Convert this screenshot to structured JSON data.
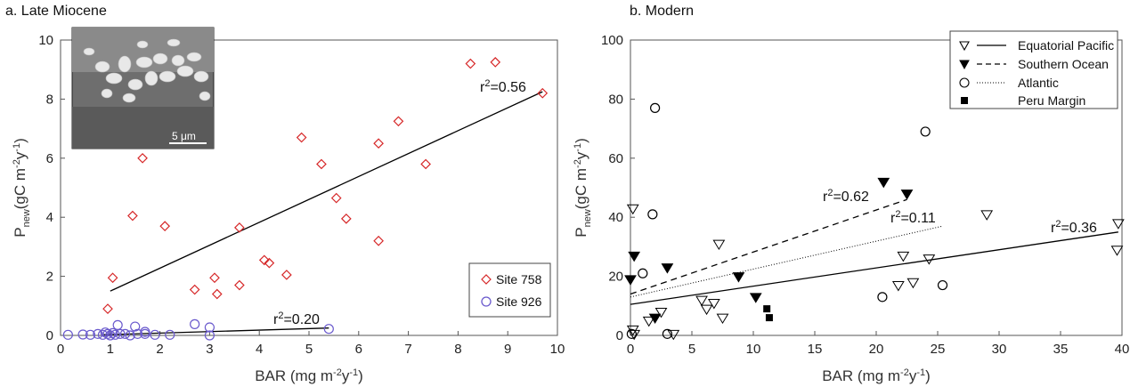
{
  "chart_data": [
    {
      "panel_title": "a. Late Miocene",
      "type": "scatter",
      "xlabel": "BAR (mg m-2y-1)",
      "ylabel": "Pnew (gC m-2y-1)",
      "xlim": [
        0,
        10
      ],
      "ylim": [
        0,
        10
      ],
      "xticks": [
        0,
        1,
        2,
        3,
        4,
        5,
        6,
        7,
        8,
        9,
        10
      ],
      "yticks": [
        0,
        2,
        4,
        6,
        8,
        10
      ],
      "legend_position": "bottom-right",
      "inset_image": {
        "description_label": "5 μm"
      },
      "series": [
        {
          "name": "Site 758",
          "marker": "diamond-open",
          "color": "#d62728",
          "points": [
            [
              0.95,
              0.9
            ],
            [
              1.05,
              1.95
            ],
            [
              1.45,
              4.05
            ],
            [
              1.65,
              6.0
            ],
            [
              2.1,
              3.7
            ],
            [
              2.7,
              1.55
            ],
            [
              3.1,
              1.95
            ],
            [
              3.15,
              1.4
            ],
            [
              3.6,
              3.65
            ],
            [
              3.6,
              1.7
            ],
            [
              4.1,
              2.55
            ],
            [
              4.2,
              2.45
            ],
            [
              4.55,
              2.05
            ],
            [
              4.85,
              6.7
            ],
            [
              5.25,
              5.8
            ],
            [
              5.55,
              4.65
            ],
            [
              5.75,
              3.95
            ],
            [
              6.4,
              6.5
            ],
            [
              6.4,
              3.2
            ],
            [
              6.8,
              7.25
            ],
            [
              7.35,
              5.8
            ],
            [
              8.25,
              9.2
            ],
            [
              8.75,
              9.25
            ],
            [
              9.7,
              8.2
            ]
          ],
          "fit": {
            "x": [
              1.0,
              9.7
            ],
            "y": [
              1.5,
              8.25
            ],
            "label": "r2=0.56"
          }
        },
        {
          "name": "Site 926",
          "marker": "circle-open",
          "color": "#6a5acd",
          "points": [
            [
              0.15,
              0.02
            ],
            [
              0.45,
              0.03
            ],
            [
              0.6,
              0.02
            ],
            [
              0.75,
              0.05
            ],
            [
              0.85,
              0.02
            ],
            [
              0.9,
              0.1
            ],
            [
              0.95,
              0.05
            ],
            [
              1.0,
              0.0
            ],
            [
              1.05,
              0.08
            ],
            [
              1.1,
              0.02
            ],
            [
              1.15,
              0.35
            ],
            [
              1.2,
              0.05
            ],
            [
              1.3,
              0.05
            ],
            [
              1.4,
              0.0
            ],
            [
              1.5,
              0.3
            ],
            [
              1.55,
              0.05
            ],
            [
              1.7,
              0.12
            ],
            [
              1.7,
              0.05
            ],
            [
              1.9,
              0.02
            ],
            [
              2.2,
              0.02
            ],
            [
              2.7,
              0.38
            ],
            [
              3.0,
              0.27
            ],
            [
              3.0,
              0.0
            ],
            [
              5.4,
              0.22
            ]
          ],
          "fit": {
            "x": [
              0.85,
              5.4
            ],
            "y": [
              0.02,
              0.25
            ],
            "label": "r2=0.20"
          }
        }
      ]
    },
    {
      "panel_title": "b. Modern",
      "type": "scatter",
      "xlabel": "BAR (mg m-2y-1)",
      "ylabel": "Pnew (gC m-2y-1)",
      "xlim": [
        0,
        40
      ],
      "ylim": [
        0,
        100
      ],
      "xticks": [
        0,
        5,
        10,
        15,
        20,
        25,
        30,
        35,
        40
      ],
      "yticks": [
        0,
        20,
        40,
        60,
        80,
        100
      ],
      "legend_position": "top-right",
      "series": [
        {
          "name": "Equatorial Pacific",
          "marker": "triangle-down-open",
          "color": "#000000",
          "line_style": "solid",
          "points": [
            [
              0.2,
              43
            ],
            [
              0.2,
              2
            ],
            [
              0.3,
              0.5
            ],
            [
              1.5,
              5
            ],
            [
              2.5,
              8
            ],
            [
              3.5,
              0.5
            ],
            [
              5.8,
              12
            ],
            [
              6.2,
              9
            ],
            [
              6.8,
              11
            ],
            [
              7.2,
              31
            ],
            [
              7.5,
              6
            ],
            [
              21.8,
              17
            ],
            [
              22.2,
              27
            ],
            [
              23.0,
              18
            ],
            [
              24.3,
              26
            ],
            [
              29.0,
              41
            ],
            [
              39.6,
              29
            ],
            [
              39.7,
              38
            ]
          ],
          "fit": {
            "x": [
              0,
              39.7
            ],
            "y": [
              10.5,
              35
            ],
            "label": "r2=0.36"
          }
        },
        {
          "name": "Southern Ocean",
          "marker": "triangle-down-filled",
          "color": "#000000",
          "line_style": "dashed",
          "points": [
            [
              0.0,
              19
            ],
            [
              0.3,
              27
            ],
            [
              2.0,
              6
            ],
            [
              3.0,
              23
            ],
            [
              8.8,
              20
            ],
            [
              10.2,
              13
            ],
            [
              20.6,
              52
            ],
            [
              22.5,
              48
            ]
          ],
          "fit": {
            "x": [
              0,
              22.5
            ],
            "y": [
              14,
              46
            ],
            "label": "r2=0.62"
          }
        },
        {
          "name": "Atlantic",
          "marker": "circle-open",
          "color": "#000000",
          "line_style": "dotted",
          "points": [
            [
              0.1,
              0.5
            ],
            [
              1.0,
              21
            ],
            [
              1.8,
              41
            ],
            [
              2.0,
              77
            ],
            [
              3.0,
              0.5
            ],
            [
              20.5,
              13
            ],
            [
              24.0,
              69
            ],
            [
              25.4,
              17
            ]
          ],
          "fit": {
            "x": [
              0,
              25.4
            ],
            "y": [
              13,
              37
            ],
            "label": "r2=0.11"
          }
        },
        {
          "name": "Peru Margin",
          "marker": "square-filled",
          "color": "#000000",
          "line_style": "none",
          "points": [
            [
              11.1,
              9
            ],
            [
              11.3,
              6
            ]
          ]
        }
      ]
    }
  ]
}
